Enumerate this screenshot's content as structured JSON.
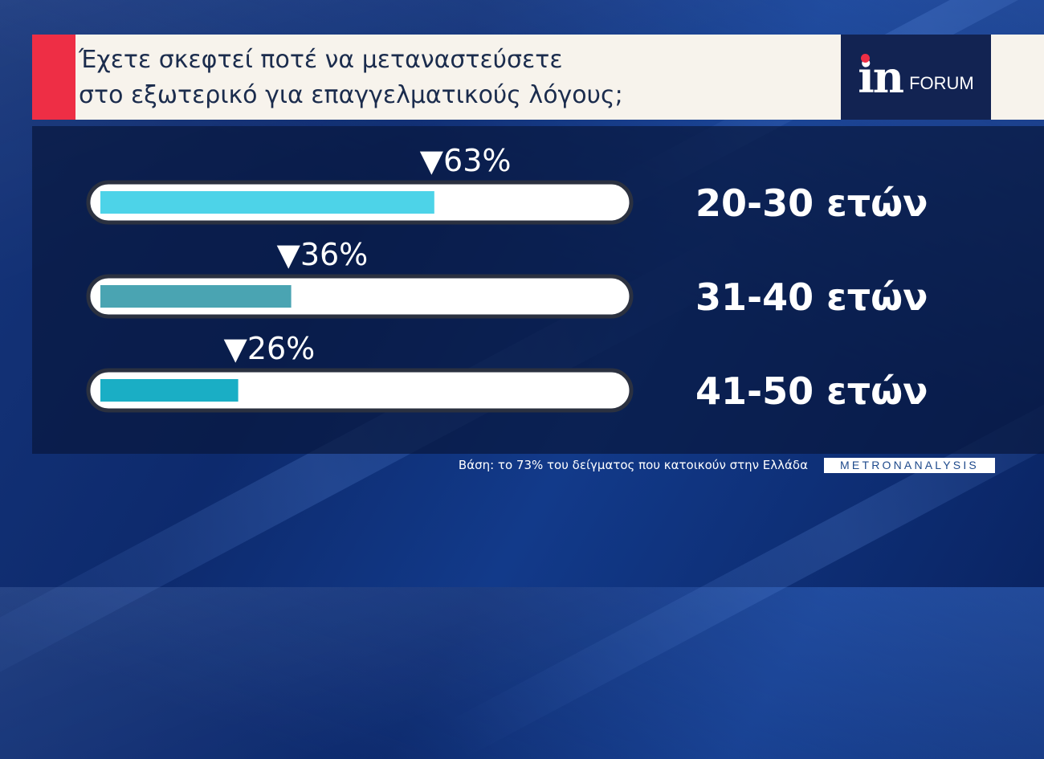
{
  "header": {
    "question_line1": "Έχετε σκεφτεί ποτέ να μεταναστεύσετε",
    "question_line2": "στο εξωτερικό για επαγγελματικούς λόγους;",
    "logo_in": "in",
    "logo_forum": "FORUM"
  },
  "footer": {
    "base_note": "Βάση: το 73% του δείγματος που κατοικούν στην Ελλάδα",
    "pollster": "METRONANALYSIS"
  },
  "colors": {
    "accent_red": "#ee2e45",
    "logo_bg": "#122352",
    "track": "#ffffff",
    "track_border": "#2b3140"
  },
  "chart_data": {
    "type": "bar",
    "orientation": "horizontal",
    "xlim": [
      0,
      100
    ],
    "categories": [
      "20-30 ετών",
      "31-40 ετών",
      "41-50 ετών"
    ],
    "values": [
      63,
      36,
      26
    ],
    "value_labels": [
      "▼63%",
      "▼36%",
      "▼26%"
    ],
    "bar_colors": [
      "#4dd3e8",
      "#4aa4b2",
      "#1aaec5"
    ]
  }
}
